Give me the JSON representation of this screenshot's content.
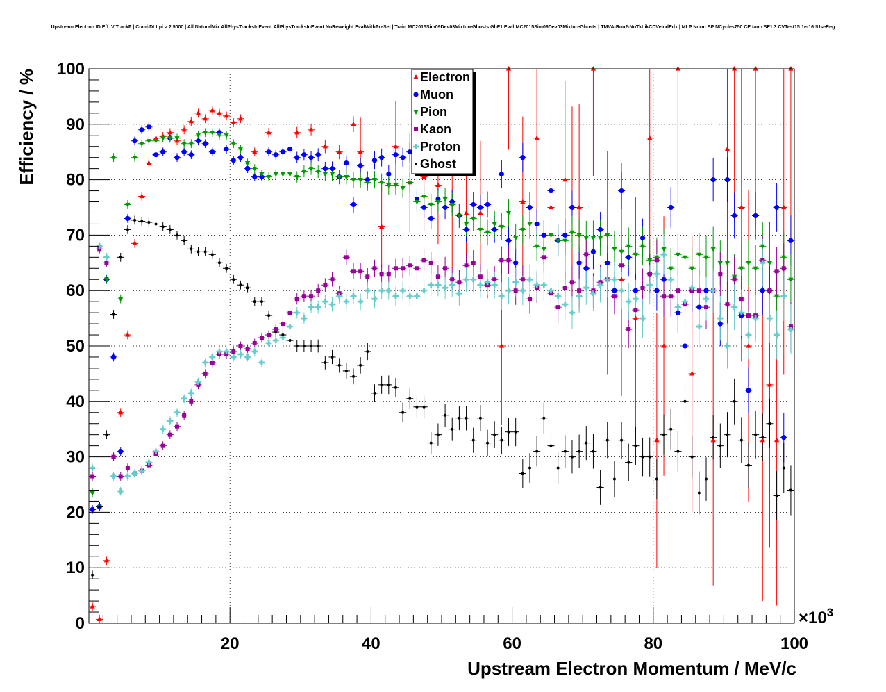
{
  "chart_data": {
    "type": "scatter",
    "title": "Upstream Electron ID Eff. V TrackP | CombDLLpi > 2.5000 | All NaturalMix AllPhysTracksInEvent:AllPhysTracksInEvent NoReweight EvalWithPreSel | Train:MC2015Sim09Dev03MixtureGhosts GhF1 Eval:MC2015Sim09Dev03MixtureGhosts | TMVA-Run2-NoTkLikCDVelodEdx | MLP Norm BP NCycles750 CE tanh SF1.3 CVTest15:1e-16 !UseReg",
    "xlabel": "Upstream Electron Momentum / MeV/c",
    "ylabel": "Efficiency / %",
    "x_exponent_label": "×10",
    "x_exponent_power": "3",
    "xlim": [
      0,
      100
    ],
    "ylim": [
      0,
      100
    ],
    "x_ticks": [
      "20",
      "40",
      "60",
      "80",
      "100"
    ],
    "y_ticks": [
      "0",
      "10",
      "20",
      "30",
      "40",
      "50",
      "60",
      "70",
      "80",
      "90",
      "100"
    ],
    "grid": true,
    "legend_position": "top-center",
    "series": [
      {
        "name": "Electron",
        "color": "#ff0000",
        "marker": "triangle-up",
        "x": [
          0.5,
          1.5,
          2.5,
          3.5,
          4.5,
          5.5,
          6.5,
          7.5,
          8.5,
          9.5,
          10.5,
          11.5,
          12.5,
          13.5,
          14.5,
          15.5,
          16.5,
          17.5,
          18.5,
          19.5,
          20.5,
          21.5,
          23.5,
          25.5,
          29.5,
          31.5,
          33.5,
          35.5,
          37.5,
          38.5,
          41.5,
          43.5,
          45.5,
          47.5,
          49.5,
          51.5,
          53.5,
          55.5,
          58.5,
          59.5,
          61.5,
          63.5,
          65.5,
          67.5,
          68.5,
          69.5,
          71.5,
          73.5,
          75.5,
          77.5,
          79.5,
          80.5,
          81.5,
          83.5,
          85.5,
          88.5,
          90.5,
          91.5,
          92.5,
          93.5,
          94.5,
          95.5,
          96.5,
          97.5,
          98.5,
          99.5
        ],
        "y": [
          3,
          0.7,
          11.3,
          30,
          38,
          52,
          68.5,
          77,
          83,
          87.5,
          87.8,
          88.5,
          87,
          89,
          90.5,
          92,
          91,
          92.5,
          92,
          91.5,
          90.3,
          91,
          85,
          88.5,
          88.5,
          89,
          86,
          85,
          90,
          85,
          71.5,
          86,
          79.5,
          80.5,
          79,
          75.5,
          74,
          74,
          50,
          100,
          76,
          87.5,
          75,
          80,
          75,
          75,
          100,
          65,
          62,
          55,
          87.5,
          33,
          50,
          100,
          45,
          33,
          85.5,
          100,
          75,
          50,
          100,
          33,
          43,
          33,
          75,
          100
        ]
      },
      {
        "name": "Muon",
        "color": "#0000ff",
        "marker": "circle",
        "x": [
          0.5,
          1.5,
          2.5,
          3.5,
          4.5,
          5.5,
          6.5,
          7.5,
          8.5,
          9.5,
          10.5,
          11.5,
          12.5,
          13.5,
          14.5,
          15.5,
          16.5,
          17.5,
          18.5,
          19.5,
          20.5,
          21.5,
          22.5,
          23.5,
          24.5,
          25.5,
          26.5,
          27.5,
          28.5,
          29.5,
          30.5,
          31.5,
          32.5,
          33.5,
          34.5,
          35.5,
          36.5,
          37.5,
          38.5,
          39.5,
          40.5,
          41.5,
          42.5,
          43.5,
          44.5,
          45.5,
          46.5,
          47.5,
          48.5,
          49.5,
          50.5,
          51.5,
          52.5,
          53.5,
          54.5,
          55.5,
          56.5,
          57.5,
          58.5,
          59.5,
          60.5,
          61.5,
          62.5,
          63.5,
          64.5,
          65.5,
          66.5,
          67.5,
          68.5,
          69.5,
          70.5,
          71.5,
          72.5,
          73.5,
          74.5,
          75.5,
          76.5,
          77.5,
          78.5,
          79.5,
          80.5,
          81.5,
          82.5,
          83.5,
          84.5,
          85.5,
          86.5,
          87.5,
          88.5,
          89.5,
          90.5,
          91.5,
          92.5,
          93.5,
          94.5,
          95.5,
          96.5,
          97.5,
          98.5,
          99.5
        ],
        "y": [
          20.5,
          21,
          62,
          48,
          31,
          73,
          87,
          89,
          89.5,
          84.5,
          85,
          87.5,
          84,
          85,
          84.5,
          87,
          86.5,
          85,
          88.5,
          85.5,
          83.5,
          84,
          82,
          80.5,
          80.5,
          85,
          84.5,
          85,
          85.5,
          84,
          84.5,
          84,
          84.5,
          82,
          82,
          80.5,
          83,
          75.5,
          82.5,
          80,
          83.5,
          84,
          81,
          84.5,
          84,
          85,
          76.5,
          75,
          73,
          76.5,
          75,
          76,
          73.5,
          71,
          75.5,
          75,
          75.5,
          71,
          81,
          69,
          65,
          84,
          75,
          72,
          70,
          78,
          69,
          70,
          75,
          65,
          64,
          67,
          71,
          65,
          60,
          78,
          66,
          60,
          69.5,
          63,
          60,
          62,
          75,
          56,
          50,
          60,
          57,
          60,
          80,
          54,
          80,
          73.5,
          55.5,
          42,
          73.5,
          60,
          60,
          75,
          33.5,
          69
        ]
      },
      {
        "name": "Pion",
        "color": "#009900",
        "marker": "triangle-down",
        "x": [
          0.5,
          1.5,
          2.5,
          3.5,
          4.5,
          5.5,
          6.5,
          7.5,
          8.5,
          9.5,
          10.5,
          11.5,
          12.5,
          13.5,
          14.5,
          15.5,
          16.5,
          17.5,
          18.5,
          19.5,
          20.5,
          21.5,
          22.5,
          23.5,
          24.5,
          25.5,
          26.5,
          27.5,
          28.5,
          29.5,
          30.5,
          31.5,
          32.5,
          33.5,
          34.5,
          35.5,
          36.5,
          37.5,
          38.5,
          39.5,
          40.5,
          41.5,
          42.5,
          43.5,
          44.5,
          45.5,
          46.5,
          47.5,
          48.5,
          49.5,
          50.5,
          51.5,
          52.5,
          53.5,
          54.5,
          55.5,
          56.5,
          57.5,
          58.5,
          59.5,
          60.5,
          61.5,
          62.5,
          63.5,
          64.5,
          65.5,
          66.5,
          67.5,
          68.5,
          69.5,
          70.5,
          71.5,
          72.5,
          73.5,
          74.5,
          75.5,
          76.5,
          77.5,
          78.5,
          79.5,
          80.5,
          81.5,
          82.5,
          83.5,
          84.5,
          85.5,
          86.5,
          87.5,
          88.5,
          89.5,
          90.5,
          91.5,
          92.5,
          93.5,
          94.5,
          95.5,
          96.5,
          97.5,
          98.5,
          99.5
        ],
        "y": [
          23.5,
          21,
          62,
          84,
          58.5,
          75.5,
          84,
          86.5,
          87,
          87,
          87.5,
          87.5,
          87.5,
          86.5,
          86.5,
          88,
          88.5,
          88.5,
          88,
          88,
          86.5,
          85.5,
          83,
          82,
          81,
          80.5,
          81,
          81,
          81,
          80.5,
          81.5,
          82,
          81.5,
          81,
          81,
          80.5,
          80.5,
          80,
          80,
          79.5,
          80,
          79.5,
          79,
          79,
          78.5,
          79.5,
          76,
          77,
          75.5,
          76,
          76.5,
          75.5,
          73.5,
          72,
          73,
          71,
          70.5,
          72,
          71.5,
          74,
          69.5,
          71,
          72,
          68,
          67.5,
          70,
          69,
          69,
          70.5,
          70,
          69.5,
          69.5,
          69.5,
          70,
          67.5,
          67,
          68,
          66.5,
          68,
          65.5,
          66,
          67.5,
          64,
          66.5,
          66,
          64,
          66.5,
          66,
          67.5,
          65,
          65,
          62.5,
          64,
          65,
          64,
          68,
          65,
          59,
          66,
          62
        ]
      },
      {
        "name": "Kaon",
        "color": "#990099",
        "marker": "square",
        "x": [
          0.5,
          1.5,
          2.5,
          3.5,
          4.5,
          5.5,
          6.5,
          7.5,
          8.5,
          9.5,
          10.5,
          11.5,
          12.5,
          13.5,
          14.5,
          15.5,
          16.5,
          17.5,
          18.5,
          19.5,
          20.5,
          21.5,
          22.5,
          23.5,
          24.5,
          25.5,
          26.5,
          27.5,
          28.5,
          29.5,
          30.5,
          31.5,
          32.5,
          33.5,
          34.5,
          35.5,
          36.5,
          37.5,
          38.5,
          39.5,
          40.5,
          41.5,
          42.5,
          43.5,
          44.5,
          45.5,
          46.5,
          47.5,
          48.5,
          49.5,
          50.5,
          51.5,
          52.5,
          53.5,
          54.5,
          55.5,
          56.5,
          57.5,
          58.5,
          59.5,
          60.5,
          61.5,
          62.5,
          63.5,
          64.5,
          65.5,
          66.5,
          67.5,
          68.5,
          69.5,
          70.5,
          71.5,
          72.5,
          73.5,
          74.5,
          75.5,
          76.5,
          77.5,
          78.5,
          79.5,
          80.5,
          81.5,
          82.5,
          83.5,
          84.5,
          85.5,
          86.5,
          87.5,
          88.5,
          89.5,
          90.5,
          91.5,
          92.5,
          93.5,
          94.5,
          95.5,
          96.5,
          97.5,
          98.5,
          99.5
        ],
        "y": [
          26.5,
          67.5,
          65,
          30,
          26.5,
          28,
          27,
          27.5,
          28.5,
          30.5,
          32,
          34,
          35.5,
          37.5,
          40,
          43,
          45,
          47,
          48.5,
          48.5,
          49,
          50,
          49.5,
          50.5,
          51.5,
          52,
          53,
          54,
          56,
          58.5,
          59,
          59,
          60,
          61,
          62,
          59.5,
          66,
          63.5,
          63.5,
          62.5,
          64,
          63,
          63,
          64,
          64,
          64.5,
          64,
          65.5,
          65,
          62.5,
          64,
          62,
          61.5,
          64.5,
          65,
          62.5,
          61,
          62,
          65.5,
          65.5,
          60,
          62,
          58.5,
          60.5,
          66,
          59.5,
          57,
          60.5,
          61.5,
          60,
          66.5,
          60,
          61.5,
          62,
          59,
          64.5,
          53,
          56.5,
          60.5,
          63,
          65.5,
          59,
          59,
          60,
          57.5,
          60,
          60,
          57,
          60,
          63,
          57.5,
          62,
          58.5,
          55.5,
          55.5,
          65.5,
          60,
          63.5,
          64,
          53.5
        ]
      },
      {
        "name": "Proton",
        "color": "#66cccc",
        "marker": "cross",
        "x": [
          0.5,
          1.5,
          2.5,
          3.5,
          4.5,
          5.5,
          6.5,
          7.5,
          8.5,
          9.5,
          10.5,
          11.5,
          12.5,
          13.5,
          14.5,
          15.5,
          16.5,
          17.5,
          18.5,
          19.5,
          20.5,
          21.5,
          22.5,
          23.5,
          24.5,
          25.5,
          26.5,
          27.5,
          28.5,
          29.5,
          30.5,
          31.5,
          32.5,
          33.5,
          34.5,
          35.5,
          36.5,
          37.5,
          38.5,
          39.5,
          40.5,
          41.5,
          42.5,
          43.5,
          44.5,
          45.5,
          46.5,
          47.5,
          48.5,
          49.5,
          50.5,
          51.5,
          52.5,
          53.5,
          54.5,
          55.5,
          56.5,
          57.5,
          58.5,
          59.5,
          60.5,
          61.5,
          62.5,
          63.5,
          64.5,
          65.5,
          66.5,
          67.5,
          68.5,
          69.5,
          70.5,
          71.5,
          72.5,
          73.5,
          74.5,
          75.5,
          76.5,
          77.5,
          78.5,
          79.5,
          80.5,
          81.5,
          82.5,
          83.5,
          84.5,
          85.5,
          86.5,
          87.5,
          88.5,
          89.5,
          90.5,
          91.5,
          92.5,
          93.5,
          94.5,
          95.5,
          96.5,
          97.5,
          98.5,
          99.5
        ],
        "y": [
          28,
          68,
          66,
          26.5,
          23.8,
          26.5,
          27,
          27.5,
          29,
          31,
          35,
          36.5,
          38,
          40.5,
          41.5,
          43.5,
          47,
          48,
          49,
          49,
          48,
          48.5,
          48,
          49,
          47,
          50.5,
          51,
          51.5,
          53.5,
          56,
          55,
          57,
          57,
          58,
          57.5,
          59,
          58,
          59,
          58,
          60,
          58.5,
          60,
          60,
          59,
          60,
          59,
          59,
          60,
          61,
          61,
          60.5,
          61,
          59.5,
          62,
          62,
          61,
          61.5,
          61,
          59,
          60,
          61.5,
          60,
          62,
          61,
          61,
          60,
          59,
          57.5,
          56,
          59,
          60.5,
          59.5,
          61,
          62,
          62,
          60,
          58,
          58.5,
          55,
          61,
          63,
          66.5,
          62,
          57,
          58,
          60.5,
          53.5,
          58.5,
          60,
          55,
          50,
          57,
          56,
          52,
          55,
          65,
          55,
          52,
          59,
          53
        ]
      },
      {
        "name": "Ghost",
        "color": "#000000",
        "marker": "dot",
        "x": [
          0.5,
          1.5,
          2.5,
          3.5,
          4.5,
          5.5,
          6.5,
          7.5,
          8.5,
          9.5,
          10.5,
          11.5,
          12.5,
          13.5,
          14.5,
          15.5,
          16.5,
          17.5,
          18.5,
          19.5,
          20.5,
          21.5,
          22.5,
          23.5,
          24.5,
          25.5,
          26.5,
          27.5,
          28.5,
          29.5,
          30.5,
          31.5,
          32.5,
          33.5,
          34.5,
          35.5,
          36.5,
          37.5,
          38.5,
          39.5,
          40.5,
          41.5,
          42.5,
          43.5,
          44.5,
          45.5,
          46.5,
          47.5,
          48.5,
          49.5,
          50.5,
          51.5,
          52.5,
          53.5,
          54.5,
          55.5,
          56.5,
          57.5,
          58.5,
          59.5,
          60.5,
          61.5,
          62.5,
          63.5,
          64.5,
          65.5,
          66.5,
          67.5,
          68.5,
          69.5,
          70.5,
          71.5,
          72.5,
          73.5,
          74.5,
          75.5,
          76.5,
          77.5,
          78.5,
          79.5,
          80.5,
          81.5,
          82.5,
          83.5,
          84.5,
          85.5,
          86.5,
          87.5,
          88.5,
          89.5,
          90.5,
          91.5,
          92.5,
          93.5,
          94.5,
          95.5,
          96.5,
          97.5,
          98.5,
          99.5
        ],
        "y": [
          8.7,
          21,
          34,
          55.7,
          66,
          71,
          72.7,
          72.5,
          72.3,
          72,
          71.5,
          71,
          70,
          69,
          67.5,
          67,
          67,
          66.5,
          65,
          64,
          62,
          61,
          60.5,
          58,
          58,
          55.5,
          52.5,
          52,
          51,
          50,
          50,
          50,
          50,
          47,
          48,
          46.5,
          45.5,
          44.5,
          46.5,
          49,
          41.5,
          43,
          43,
          42.5,
          38,
          40.5,
          39,
          39,
          32.5,
          34,
          37.5,
          35,
          37,
          37,
          33,
          37,
          32.5,
          34,
          33,
          34.5,
          34.5,
          27,
          28,
          31,
          37,
          32,
          28,
          31,
          30,
          31,
          32.5,
          31,
          24.5,
          33,
          26,
          33,
          29,
          32,
          30,
          30,
          26,
          34,
          35,
          31,
          40,
          30,
          23.5,
          26,
          33.5,
          32,
          34,
          40,
          33,
          28.5,
          34,
          33.5,
          36,
          23,
          28,
          24
        ]
      }
    ]
  }
}
